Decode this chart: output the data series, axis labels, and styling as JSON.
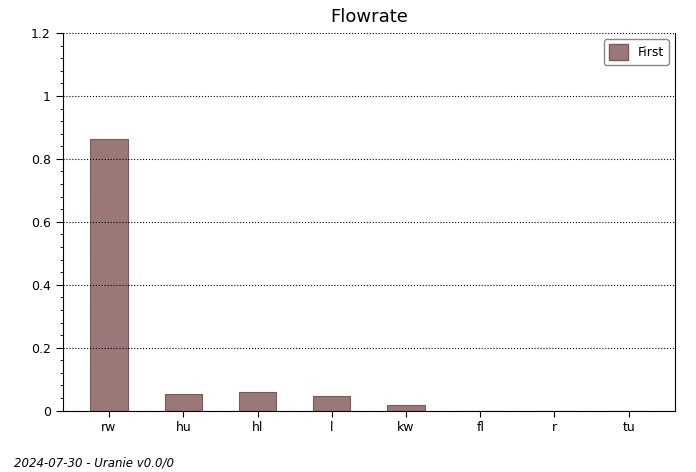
{
  "title": "Flowrate",
  "categories": [
    "rw",
    "hu",
    "hl",
    "l",
    "kw",
    "fl",
    "r",
    "tu"
  ],
  "values": [
    0.864,
    0.054,
    0.058,
    0.048,
    0.018,
    0.0,
    0.0,
    0.0
  ],
  "bar_color": "#9b7878",
  "bar_edge_color": "#7a5a5a",
  "legend_label": "First",
  "ylim": [
    0,
    1.2
  ],
  "yticks": [
    0.0,
    0.2,
    0.4,
    0.6,
    0.8,
    1.0,
    1.2
  ],
  "grid_color": "#000000",
  "bg_color": "#ffffff",
  "footer_text": "2024-07-30 - Uranie v0.0/0",
  "title_fontsize": 13,
  "tick_fontsize": 9,
  "footer_fontsize": 8.5
}
